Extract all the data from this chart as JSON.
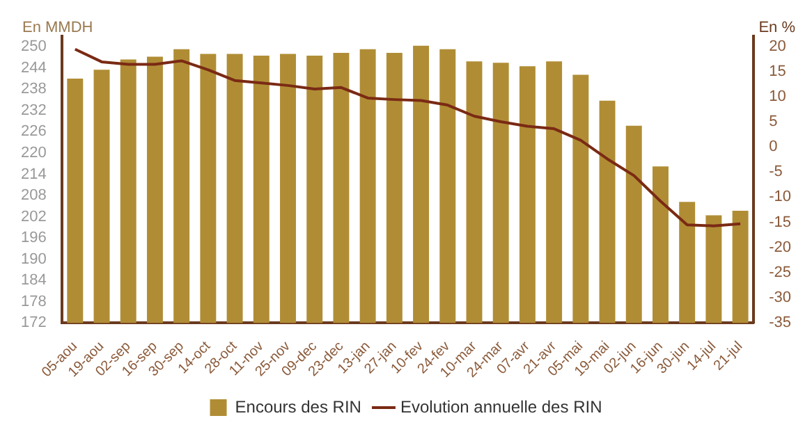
{
  "chart_data": {
    "type": "bar",
    "ylabel": "En MMDH",
    "y2label": "En %",
    "categories": [
      "05-aou",
      "19-aou",
      "02-sep",
      "16-sep",
      "30-sep",
      "14-oct",
      "28-oct",
      "11-nov",
      "25-nov",
      "09-dec",
      "23-dec",
      "13-jan",
      "27-jan",
      "10-fev",
      "24-fev",
      "10-mar",
      "24-mar",
      "07-avr",
      "21-avr",
      "05-mai",
      "19-mai",
      "02-jun",
      "16-jun",
      "30-jun",
      "14-jul",
      "21-jul"
    ],
    "series": [
      {
        "name": "Encours des RIN",
        "color": "#b08d35",
        "values": [
          241,
          243.5,
          246.4,
          247.2,
          249.3,
          248,
          248,
          247.5,
          248,
          247.5,
          248.3,
          249.3,
          248.3,
          250.3,
          249.3,
          245.9,
          245.5,
          244.5,
          245.9,
          242.1,
          234.8,
          227.7,
          216.2,
          206.2,
          202.4,
          203.7
        ]
      },
      {
        "name": "Evolution annuelle des RIN",
        "type": "line",
        "axis": "y2",
        "color": "#7a2a14",
        "values": [
          19.4,
          16.9,
          16.4,
          16.4,
          17.1,
          15.3,
          13.2,
          12.7,
          12.2,
          11.5,
          11.8,
          9.7,
          9.4,
          9.2,
          8.3,
          6.1,
          5,
          4.1,
          3.6,
          1.3,
          -2.4,
          -5.7,
          -10.8,
          -15.5,
          -15.7,
          -15.3
        ]
      }
    ],
    "ylim": [
      172,
      253
    ],
    "yticks": [
      172,
      178,
      184,
      190,
      196,
      202,
      208,
      214,
      220,
      226,
      232,
      238,
      244,
      250
    ],
    "y2lim": [
      -35,
      22
    ],
    "y2ticks": [
      -35,
      -30,
      -25,
      -20,
      -15,
      -10,
      -5,
      0,
      5,
      10,
      15,
      20
    ],
    "grid": false,
    "legend": "bottom",
    "marker": "none",
    "line_style": "solid"
  }
}
